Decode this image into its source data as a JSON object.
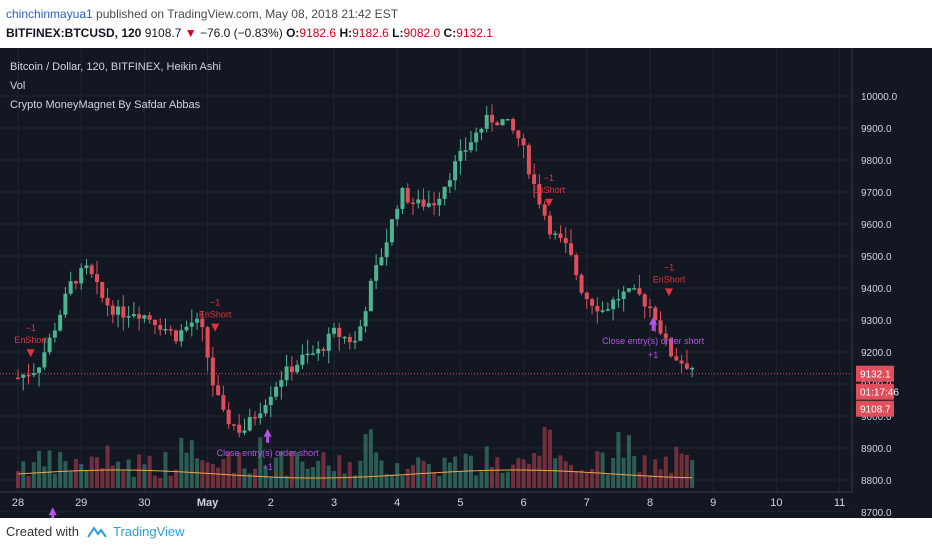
{
  "header": {
    "user": "chinchinmayua1",
    "published_text": " published on TradingView.com, May 08, 2018 21:42 EST",
    "symbol": "BITFINEX:BTCUSD, 120",
    "last": "9108.7",
    "down_arrow": "▼",
    "change": "−76.0 (−0.83%)",
    "open_label": "O:",
    "open": "9182.6",
    "high_label": "H:",
    "high": "9182.6",
    "low_label": "L:",
    "low": "9082.0",
    "close_label": "C:",
    "close": "9132.1"
  },
  "legend": {
    "line1": "Bitcoin / Dollar, 120, BITFINEX, Heikin Ashi",
    "line2": "Vol",
    "line3": "Crypto MoneyMagnet By Safdar Abbas"
  },
  "footer": {
    "created_with": "Created with",
    "brand": "TradingView"
  },
  "colors": {
    "bg": "#131722",
    "up": "#4bb491",
    "down": "#e04e5b",
    "signal": "#e3333c",
    "close": "#b455e6",
    "axis_text": "#d1d4dc"
  },
  "chart_data": {
    "type": "candlestick",
    "style": "Heikin Ashi",
    "title": "Bitcoin / Dollar, 120, BITFINEX, Heikin Ashi",
    "ylim": [
      8650,
      10060
    ],
    "y_ticks": [
      "10000.0",
      "9900.0",
      "9800.0",
      "9700.0",
      "9600.0",
      "9500.0",
      "9400.0",
      "9300.0",
      "9200.0",
      "9100.0",
      "9000.0",
      "8900.0",
      "8800.0",
      "8700.0"
    ],
    "x_ticks": [
      "28",
      "29",
      "30",
      "May",
      "2",
      "3",
      "4",
      "5",
      "6",
      "7",
      "8",
      "9",
      "10",
      "11"
    ],
    "price_labels": {
      "last_close": "9132.1",
      "countdown": "01:17:46",
      "current": "9108.7"
    },
    "path_points": [
      {
        "d": 0.0,
        "p": 9120
      },
      {
        "d": 0.3,
        "p": 9150
      },
      {
        "d": 0.55,
        "p": 9260
      },
      {
        "d": 0.85,
        "p": 9420
      },
      {
        "d": 1.1,
        "p": 9460
      },
      {
        "d": 1.35,
        "p": 9360
      },
      {
        "d": 1.6,
        "p": 9320
      },
      {
        "d": 1.85,
        "p": 9330
      },
      {
        "d": 2.15,
        "p": 9300
      },
      {
        "d": 2.5,
        "p": 9250
      },
      {
        "d": 2.8,
        "p": 9300
      },
      {
        "d": 2.95,
        "p": 9250
      },
      {
        "d": 3.05,
        "p": 9120
      },
      {
        "d": 3.25,
        "p": 9000
      },
      {
        "d": 3.55,
        "p": 8950
      },
      {
        "d": 3.85,
        "p": 9030
      },
      {
        "d": 4.15,
        "p": 9120
      },
      {
        "d": 4.5,
        "p": 9180
      },
      {
        "d": 4.75,
        "p": 9200
      },
      {
        "d": 5.0,
        "p": 9260
      },
      {
        "d": 5.35,
        "p": 9230
      },
      {
        "d": 5.6,
        "p": 9420
      },
      {
        "d": 5.85,
        "p": 9560
      },
      {
        "d": 6.05,
        "p": 9700
      },
      {
        "d": 6.3,
        "p": 9660
      },
      {
        "d": 6.6,
        "p": 9670
      },
      {
        "d": 6.9,
        "p": 9780
      },
      {
        "d": 7.2,
        "p": 9870
      },
      {
        "d": 7.45,
        "p": 9930
      },
      {
        "d": 7.7,
        "p": 9920
      },
      {
        "d": 7.95,
        "p": 9860
      },
      {
        "d": 8.2,
        "p": 9700
      },
      {
        "d": 8.45,
        "p": 9570
      },
      {
        "d": 8.7,
        "p": 9520
      },
      {
        "d": 8.95,
        "p": 9380
      },
      {
        "d": 9.25,
        "p": 9330
      },
      {
        "d": 9.55,
        "p": 9380
      },
      {
        "d": 9.8,
        "p": 9380
      },
      {
        "d": 10.05,
        "p": 9330
      },
      {
        "d": 10.3,
        "p": 9200
      },
      {
        "d": 10.5,
        "p": 9170
      },
      {
        "d": 10.7,
        "p": 9150
      }
    ],
    "annotations": [
      {
        "type": "signal",
        "d": 0.2,
        "p": 9190,
        "label": "EnShort",
        "tag": "−1"
      },
      {
        "type": "close",
        "d": 0.55,
        "p": 8690,
        "label": "",
        "tag": ""
      },
      {
        "type": "signal",
        "d": 3.12,
        "p": 9270,
        "label": "EnShort",
        "tag": "−1"
      },
      {
        "type": "close",
        "d": 3.95,
        "p": 8935,
        "label": "Close entry(s) order short",
        "tag": "+1"
      },
      {
        "type": "signal",
        "d": 8.4,
        "p": 9660,
        "label": "EnShort",
        "tag": "−1"
      },
      {
        "type": "signal",
        "d": 10.3,
        "p": 9380,
        "label": "EnShort",
        "tag": "−1"
      },
      {
        "type": "close",
        "d": 10.05,
        "p": 9285,
        "label": "Close entry(s) order short",
        "tag": "+1"
      }
    ]
  }
}
